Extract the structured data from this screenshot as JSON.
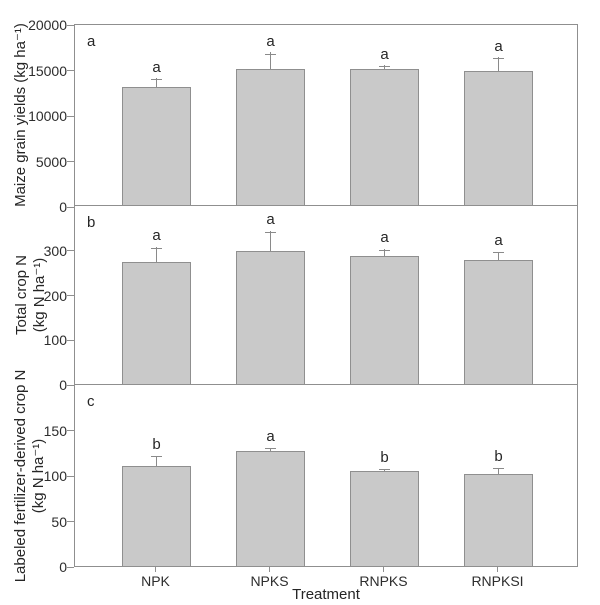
{
  "figure": {
    "xlabel": "Treatment",
    "categories": [
      "NPK",
      "NPKS",
      "RNPKS",
      "RNPKSI"
    ],
    "colors": {
      "bar_fill": "#c9c9c9",
      "bar_border": "#8f8f8f",
      "axis": "#8f8f8f",
      "error_bar": "#8a8a8a",
      "text": "#2d2d2d"
    }
  },
  "chart_data": [
    {
      "type": "bar",
      "panel_label": "a",
      "ylabel_lines": [
        "Maize grain yields (kg ha⁻¹)"
      ],
      "categories": [
        "NPK",
        "NPKS",
        "RNPKS",
        "RNPKSI"
      ],
      "values": [
        13000,
        14900,
        14900,
        14700
      ],
      "error_plus": [
        1000,
        1900,
        500,
        1600
      ],
      "sig_letters": [
        "a",
        "a",
        "a",
        "a"
      ],
      "ylim": [
        0,
        20000
      ],
      "yticks": [
        0,
        5000,
        10000,
        15000,
        20000
      ],
      "grid": false,
      "legend": false
    },
    {
      "type": "bar",
      "panel_label": "b",
      "ylabel_lines": [
        "Total crop N",
        "(kg N ha⁻¹)"
      ],
      "categories": [
        "NPK",
        "NPKS",
        "RNPKS",
        "RNPKSI"
      ],
      "values": [
        272,
        298,
        287,
        278
      ],
      "error_plus": [
        34,
        43,
        14,
        17
      ],
      "sig_letters": [
        "a",
        "a",
        "a",
        "a"
      ],
      "ylim": [
        0,
        400
      ],
      "yticks": [
        0,
        100,
        200,
        300
      ],
      "grid": false,
      "legend": false
    },
    {
      "type": "bar",
      "panel_label": "c",
      "ylabel_lines": [
        "Labeled fertilizer-derived crop N",
        "(kg N ha⁻¹)"
      ],
      "categories": [
        "NPK",
        "NPKS",
        "RNPKS",
        "RNPKSI"
      ],
      "values": [
        110,
        126,
        104,
        101
      ],
      "error_plus": [
        11,
        4,
        3,
        7
      ],
      "sig_letters": [
        "b",
        "a",
        "b",
        "b"
      ],
      "ylim": [
        0,
        200
      ],
      "yticks": [
        0,
        50,
        100,
        150
      ],
      "grid": false,
      "legend": false
    }
  ]
}
